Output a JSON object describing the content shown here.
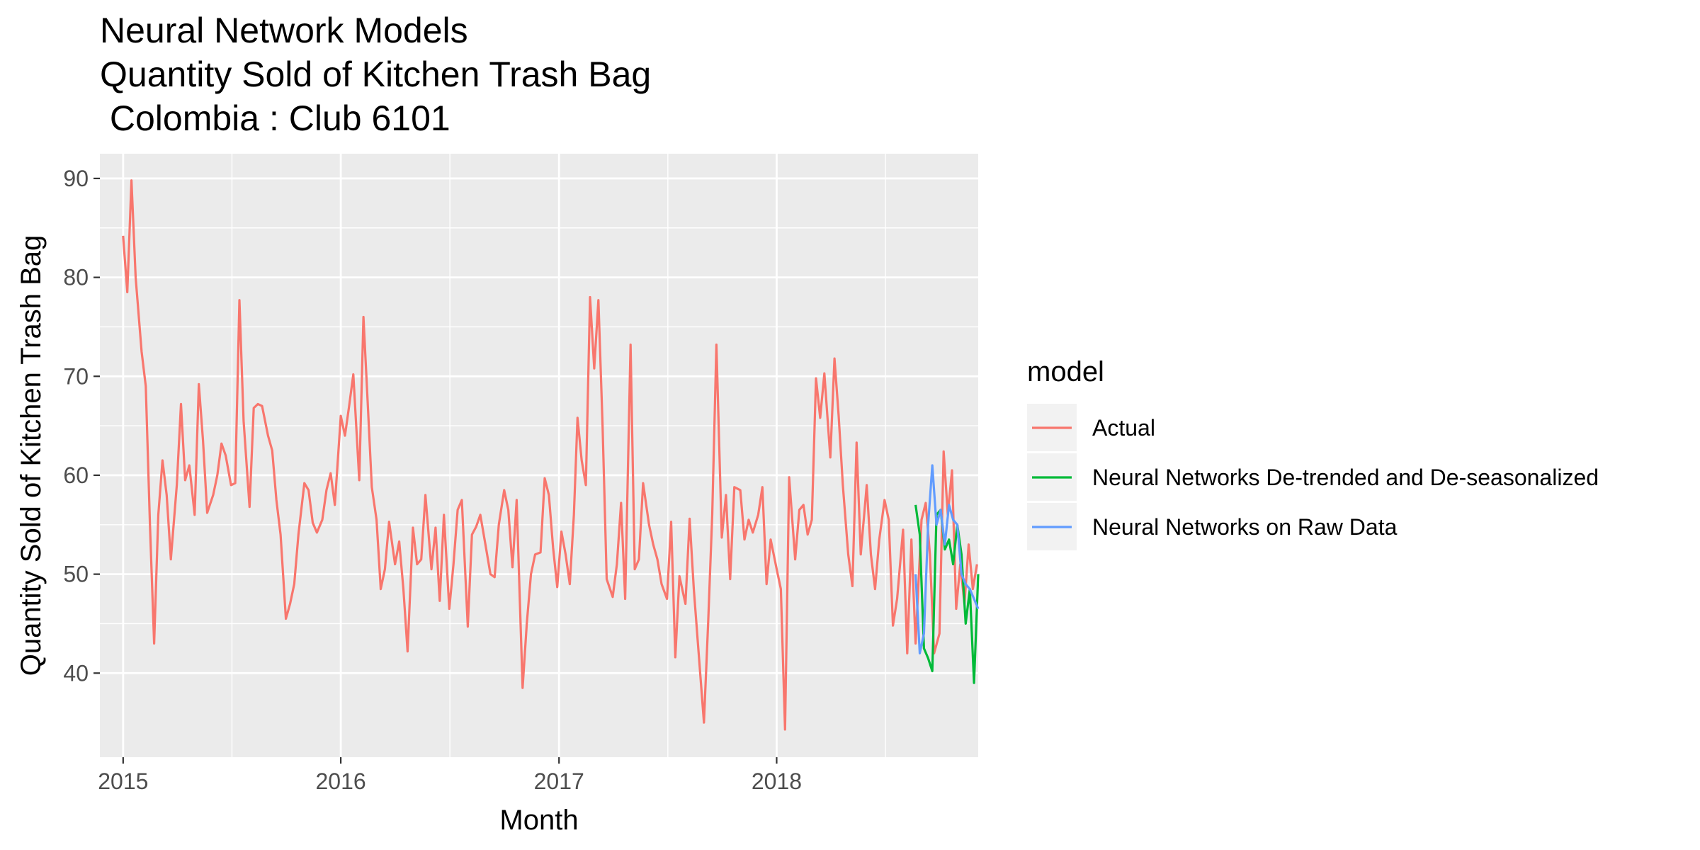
{
  "chart_data": {
    "type": "line",
    "title_lines": [
      "Neural Network Models",
      "Quantity Sold of Kitchen Trash Bag",
      " Colombia : Club 6101"
    ],
    "xlabel": "Month",
    "ylabel": "Quantity Sold of Kitchen Trash Bag",
    "xlim": [
      "2014-11-23",
      "2018-12-05"
    ],
    "ylim": [
      31.5,
      92.5
    ],
    "x_ticks": [
      {
        "value": "2015-01-01",
        "label": "2015"
      },
      {
        "value": "2016-01-01",
        "label": "2016"
      },
      {
        "value": "2017-01-01",
        "label": "2017"
      },
      {
        "value": "2018-01-01",
        "label": "2018"
      }
    ],
    "y_ticks": [
      {
        "value": 40,
        "label": "40"
      },
      {
        "value": 50,
        "label": "50"
      },
      {
        "value": 60,
        "label": "60"
      },
      {
        "value": 70,
        "label": "70"
      },
      {
        "value": 80,
        "label": "80"
      },
      {
        "value": 90,
        "label": "90"
      }
    ],
    "grid": true,
    "legend": {
      "title": "model",
      "position": "right"
    },
    "series": [
      {
        "name": "Actual",
        "color": "#F8766D",
        "points": [
          [
            "2015-01-01",
            84.2
          ],
          [
            "2015-01-08",
            78.5
          ],
          [
            "2015-01-15",
            89.8
          ],
          [
            "2015-01-22",
            80.0
          ],
          [
            "2015-02-01",
            72.5
          ],
          [
            "2015-02-08",
            69.0
          ],
          [
            "2015-02-15",
            55.0
          ],
          [
            "2015-02-22",
            43.0
          ],
          [
            "2015-03-01",
            56.0
          ],
          [
            "2015-03-08",
            61.5
          ],
          [
            "2015-03-15",
            58.0
          ],
          [
            "2015-03-22",
            51.5
          ],
          [
            "2015-04-01",
            59.0
          ],
          [
            "2015-04-08",
            67.2
          ],
          [
            "2015-04-15",
            59.5
          ],
          [
            "2015-04-22",
            61.0
          ],
          [
            "2015-05-01",
            56.0
          ],
          [
            "2015-05-08",
            69.2
          ],
          [
            "2015-05-15",
            63.5
          ],
          [
            "2015-05-22",
            56.2
          ],
          [
            "2015-06-01",
            58.0
          ],
          [
            "2015-06-08",
            60.0
          ],
          [
            "2015-06-15",
            63.2
          ],
          [
            "2015-06-22",
            62.0
          ],
          [
            "2015-07-01",
            59.0
          ],
          [
            "2015-07-08",
            59.2
          ],
          [
            "2015-07-15",
            77.7
          ],
          [
            "2015-07-22",
            65.5
          ],
          [
            "2015-08-01",
            56.8
          ],
          [
            "2015-08-08",
            66.8
          ],
          [
            "2015-08-15",
            67.2
          ],
          [
            "2015-08-22",
            67.0
          ],
          [
            "2015-09-01",
            64.0
          ],
          [
            "2015-09-08",
            62.5
          ],
          [
            "2015-09-15",
            57.5
          ],
          [
            "2015-09-22",
            54.0
          ],
          [
            "2015-10-01",
            45.5
          ],
          [
            "2015-10-08",
            47.0
          ],
          [
            "2015-10-15",
            49.0
          ],
          [
            "2015-10-22",
            54.0
          ],
          [
            "2015-11-01",
            59.2
          ],
          [
            "2015-11-08",
            58.5
          ],
          [
            "2015-11-15",
            55.2
          ],
          [
            "2015-11-22",
            54.2
          ],
          [
            "2015-12-01",
            55.5
          ],
          [
            "2015-12-08",
            58.5
          ],
          [
            "2015-12-15",
            60.2
          ],
          [
            "2015-12-22",
            57.0
          ],
          [
            "2016-01-01",
            66.0
          ],
          [
            "2016-01-08",
            64.0
          ],
          [
            "2016-01-15",
            67.0
          ],
          [
            "2016-01-22",
            70.2
          ],
          [
            "2016-02-01",
            59.5
          ],
          [
            "2016-02-08",
            76.0
          ],
          [
            "2016-02-15",
            67.5
          ],
          [
            "2016-02-22",
            58.8
          ],
          [
            "2016-03-01",
            55.5
          ],
          [
            "2016-03-08",
            48.5
          ],
          [
            "2016-03-15",
            50.5
          ],
          [
            "2016-03-22",
            55.3
          ],
          [
            "2016-04-01",
            51.0
          ],
          [
            "2016-04-08",
            53.3
          ],
          [
            "2016-04-15",
            48.5
          ],
          [
            "2016-04-22",
            42.2
          ],
          [
            "2016-05-01",
            54.7
          ],
          [
            "2016-05-08",
            51.0
          ],
          [
            "2016-05-15",
            51.5
          ],
          [
            "2016-05-22",
            58.0
          ],
          [
            "2016-06-01",
            50.5
          ],
          [
            "2016-06-08",
            54.7
          ],
          [
            "2016-06-15",
            47.3
          ],
          [
            "2016-06-22",
            56.0
          ],
          [
            "2016-07-01",
            46.5
          ],
          [
            "2016-07-08",
            51.0
          ],
          [
            "2016-07-15",
            56.5
          ],
          [
            "2016-07-22",
            57.5
          ],
          [
            "2016-08-01",
            44.7
          ],
          [
            "2016-08-08",
            54.0
          ],
          [
            "2016-08-15",
            54.8
          ],
          [
            "2016-08-22",
            56.0
          ],
          [
            "2016-09-01",
            52.5
          ],
          [
            "2016-09-08",
            50.0
          ],
          [
            "2016-09-15",
            49.7
          ],
          [
            "2016-09-22",
            55.0
          ],
          [
            "2016-10-01",
            58.5
          ],
          [
            "2016-10-08",
            56.5
          ],
          [
            "2016-10-15",
            50.7
          ],
          [
            "2016-10-22",
            57.5
          ],
          [
            "2016-11-01",
            38.5
          ],
          [
            "2016-11-08",
            45.0
          ],
          [
            "2016-11-15",
            50.0
          ],
          [
            "2016-11-22",
            52.0
          ],
          [
            "2016-12-01",
            52.2
          ],
          [
            "2016-12-08",
            59.7
          ],
          [
            "2016-12-15",
            58.0
          ],
          [
            "2016-12-22",
            52.7
          ],
          [
            "2016-12-29",
            48.7
          ],
          [
            "2017-01-05",
            54.3
          ],
          [
            "2017-01-12",
            52.0
          ],
          [
            "2017-01-19",
            49.0
          ],
          [
            "2017-01-26",
            56.0
          ],
          [
            "2017-02-01",
            65.8
          ],
          [
            "2017-02-08",
            61.5
          ],
          [
            "2017-02-15",
            59.0
          ],
          [
            "2017-02-22",
            78.0
          ],
          [
            "2017-03-01",
            70.8
          ],
          [
            "2017-03-08",
            77.7
          ],
          [
            "2017-03-15",
            65.0
          ],
          [
            "2017-03-22",
            49.5
          ],
          [
            "2017-04-01",
            47.7
          ],
          [
            "2017-04-08",
            51.0
          ],
          [
            "2017-04-15",
            57.2
          ],
          [
            "2017-04-22",
            47.5
          ],
          [
            "2017-05-01",
            73.2
          ],
          [
            "2017-05-08",
            50.5
          ],
          [
            "2017-05-15",
            51.5
          ],
          [
            "2017-05-22",
            59.2
          ],
          [
            "2017-06-01",
            55.0
          ],
          [
            "2017-06-08",
            53.0
          ],
          [
            "2017-06-15",
            51.5
          ],
          [
            "2017-06-22",
            49.0
          ],
          [
            "2017-07-01",
            47.5
          ],
          [
            "2017-07-08",
            55.3
          ],
          [
            "2017-07-15",
            41.6
          ],
          [
            "2017-07-22",
            49.8
          ],
          [
            "2017-08-01",
            47.0
          ],
          [
            "2017-08-08",
            55.6
          ],
          [
            "2017-08-15",
            48.5
          ],
          [
            "2017-08-22",
            43.0
          ],
          [
            "2017-09-01",
            35.0
          ],
          [
            "2017-09-08",
            45.0
          ],
          [
            "2017-09-15",
            56.0
          ],
          [
            "2017-09-22",
            73.2
          ],
          [
            "2017-10-01",
            53.7
          ],
          [
            "2017-10-08",
            58.0
          ],
          [
            "2017-10-15",
            49.5
          ],
          [
            "2017-10-22",
            58.8
          ],
          [
            "2017-11-01",
            58.5
          ],
          [
            "2017-11-08",
            53.5
          ],
          [
            "2017-11-15",
            55.5
          ],
          [
            "2017-11-22",
            54.2
          ],
          [
            "2017-12-01",
            56.0
          ],
          [
            "2017-12-08",
            58.8
          ],
          [
            "2017-12-15",
            49.0
          ],
          [
            "2017-12-22",
            53.5
          ],
          [
            "2018-01-01",
            50.5
          ],
          [
            "2018-01-08",
            48.5
          ],
          [
            "2018-01-15",
            34.3
          ],
          [
            "2018-01-22",
            59.8
          ],
          [
            "2018-02-01",
            51.5
          ],
          [
            "2018-02-08",
            56.5
          ],
          [
            "2018-02-15",
            57.0
          ],
          [
            "2018-02-22",
            54.0
          ],
          [
            "2018-03-01",
            55.5
          ],
          [
            "2018-03-08",
            69.8
          ],
          [
            "2018-03-15",
            65.8
          ],
          [
            "2018-03-22",
            70.3
          ],
          [
            "2018-04-01",
            61.8
          ],
          [
            "2018-04-08",
            71.8
          ],
          [
            "2018-04-15",
            66.0
          ],
          [
            "2018-04-22",
            59.0
          ],
          [
            "2018-05-01",
            52.0
          ],
          [
            "2018-05-08",
            48.8
          ],
          [
            "2018-05-15",
            63.3
          ],
          [
            "2018-05-22",
            52.0
          ],
          [
            "2018-06-01",
            59.0
          ],
          [
            "2018-06-08",
            52.0
          ],
          [
            "2018-06-15",
            48.5
          ],
          [
            "2018-06-22",
            53.5
          ],
          [
            "2018-07-01",
            57.5
          ],
          [
            "2018-07-08",
            55.5
          ],
          [
            "2018-07-15",
            44.8
          ],
          [
            "2018-07-22",
            47.5
          ],
          [
            "2018-08-01",
            54.5
          ],
          [
            "2018-08-08",
            42.0
          ],
          [
            "2018-08-15",
            53.5
          ],
          [
            "2018-08-22",
            43.0
          ],
          [
            "2018-09-01",
            55.5
          ],
          [
            "2018-09-08",
            57.2
          ],
          [
            "2018-09-15",
            52.0
          ],
          [
            "2018-09-22",
            42.0
          ],
          [
            "2018-10-01",
            44.0
          ],
          [
            "2018-10-08",
            62.4
          ],
          [
            "2018-10-15",
            56.0
          ],
          [
            "2018-10-22",
            60.5
          ],
          [
            "2018-10-29",
            46.5
          ],
          [
            "2018-11-05",
            51.0
          ],
          [
            "2018-11-12",
            47.0
          ],
          [
            "2018-11-19",
            53.0
          ],
          [
            "2018-11-26",
            48.5
          ],
          [
            "2018-12-03",
            51.0
          ]
        ]
      },
      {
        "name": "Neural Networks De-trended and De-seasonalized",
        "color": "#00BA38",
        "points": [
          [
            "2018-08-22",
            57.0
          ],
          [
            "2018-08-29",
            54.0
          ],
          [
            "2018-09-05",
            42.5
          ],
          [
            "2018-09-12",
            41.5
          ],
          [
            "2018-09-19",
            40.2
          ],
          [
            "2018-09-26",
            56.0
          ],
          [
            "2018-10-03",
            56.5
          ],
          [
            "2018-10-10",
            52.5
          ],
          [
            "2018-10-17",
            53.5
          ],
          [
            "2018-10-24",
            51.0
          ],
          [
            "2018-10-31",
            55.0
          ],
          [
            "2018-11-07",
            52.0
          ],
          [
            "2018-11-14",
            45.0
          ],
          [
            "2018-11-21",
            48.5
          ],
          [
            "2018-11-28",
            39.0
          ],
          [
            "2018-12-05",
            50.0
          ]
        ]
      },
      {
        "name": "Neural Networks on Raw Data",
        "color": "#619CFF",
        "points": [
          [
            "2018-08-22",
            50.0
          ],
          [
            "2018-08-29",
            42.0
          ],
          [
            "2018-09-05",
            44.0
          ],
          [
            "2018-09-12",
            55.0
          ],
          [
            "2018-09-19",
            61.0
          ],
          [
            "2018-09-26",
            55.0
          ],
          [
            "2018-10-03",
            56.5
          ],
          [
            "2018-10-10",
            53.0
          ],
          [
            "2018-10-17",
            57.0
          ],
          [
            "2018-10-24",
            55.5
          ],
          [
            "2018-10-31",
            55.0
          ],
          [
            "2018-11-07",
            50.0
          ],
          [
            "2018-11-14",
            49.0
          ],
          [
            "2018-11-21",
            48.5
          ],
          [
            "2018-11-28",
            47.5
          ],
          [
            "2018-12-05",
            46.5
          ]
        ]
      }
    ]
  }
}
